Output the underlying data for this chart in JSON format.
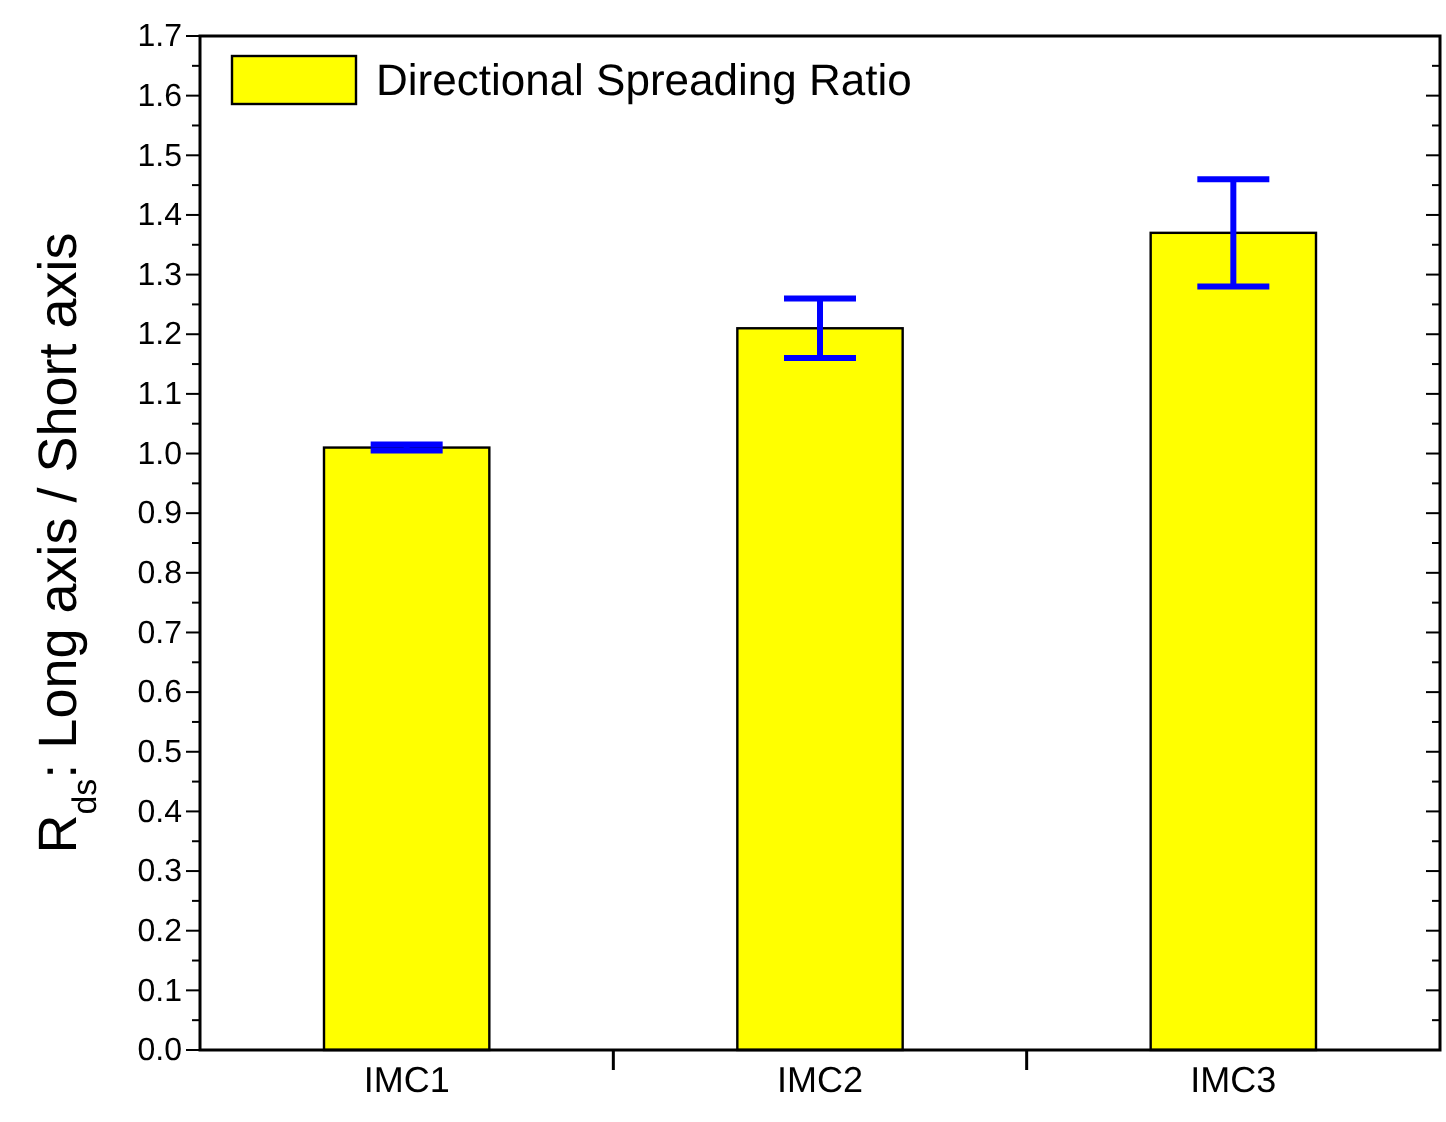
{
  "chart_data": {
    "type": "bar",
    "ylabel": "R$_{ds}$: Long axis / Short axis",
    "categories": [
      "IMC1",
      "IMC2",
      "IMC3"
    ],
    "series": [
      {
        "name": "Directional Spreading Ratio",
        "color": "#ffff00",
        "values": [
          1.01,
          1.21,
          1.37
        ],
        "errors": [
          0.005,
          0.05,
          0.09
        ]
      }
    ],
    "ylim": [
      0,
      1.7
    ],
    "yticks": [
      {
        "value": 0,
        "label": "0.0"
      },
      {
        "value": 0.05,
        "label": null
      },
      {
        "value": 0.1,
        "label": "0.1"
      },
      {
        "value": 0.15,
        "label": null
      },
      {
        "value": 0.2,
        "label": "0.2"
      },
      {
        "value": 0.25,
        "label": null
      },
      {
        "value": 0.3,
        "label": "0.3"
      },
      {
        "value": 0.35,
        "label": null
      },
      {
        "value": 0.4,
        "label": "0.4"
      },
      {
        "value": 0.45,
        "label": null
      },
      {
        "value": 0.5,
        "label": "0.5"
      },
      {
        "value": 0.55,
        "label": null
      },
      {
        "value": 0.6,
        "label": "0.6"
      },
      {
        "value": 0.65,
        "label": null
      },
      {
        "value": 0.7,
        "label": "0.7"
      },
      {
        "value": 0.75,
        "label": null
      },
      {
        "value": 0.8,
        "label": "0.8"
      },
      {
        "value": 0.85,
        "label": null
      },
      {
        "value": 0.9,
        "label": "0.9"
      },
      {
        "value": 0.95,
        "label": null
      },
      {
        "value": 1.0,
        "label": "1.0"
      },
      {
        "value": 1.05,
        "label": null
      },
      {
        "value": 1.1,
        "label": "1.1"
      },
      {
        "value": 1.15,
        "label": null
      },
      {
        "value": 1.2,
        "label": "1.2"
      },
      {
        "value": 1.25,
        "label": null
      },
      {
        "value": 1.3,
        "label": "1.3"
      },
      {
        "value": 1.35,
        "label": null
      },
      {
        "value": 1.4,
        "label": "1.4"
      },
      {
        "value": 1.45,
        "label": null
      },
      {
        "value": 1.5,
        "label": "1.5"
      },
      {
        "value": 1.55,
        "label": null
      },
      {
        "value": 1.6,
        "label": "1.6"
      },
      {
        "value": 1.65,
        "label": null
      },
      {
        "value": 1.7,
        "label": "1.7"
      }
    ],
    "legend": "top left",
    "grid": false
  }
}
